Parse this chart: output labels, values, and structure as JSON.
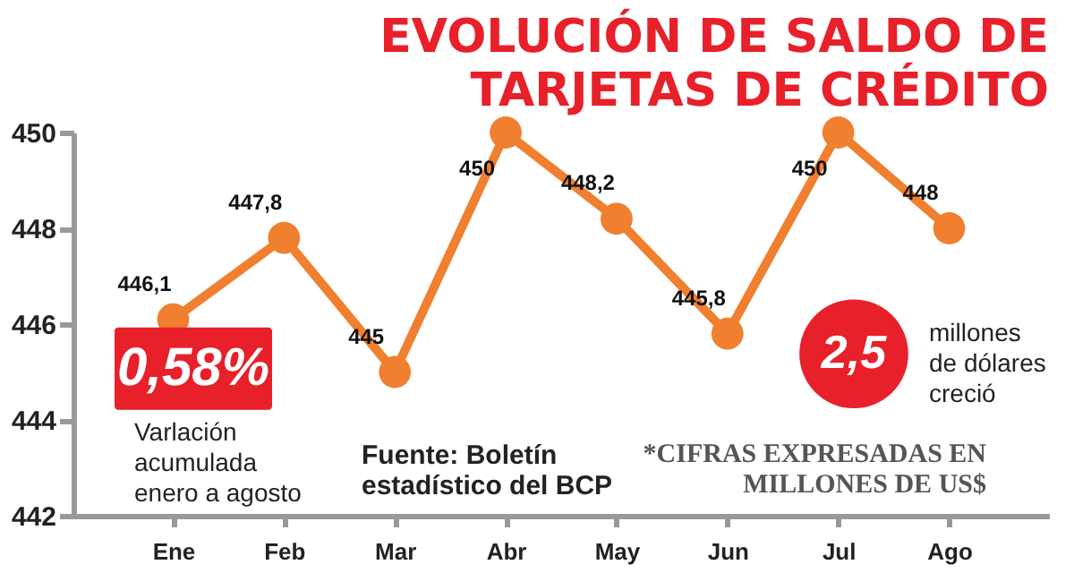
{
  "chart_data": {
    "type": "line",
    "title": "EVOLUCIÓN DE SALDO DE TARJETAS DE CRÉDITO",
    "categories": [
      "Ene",
      "Feb",
      "Mar",
      "Abr",
      "May",
      "Jun",
      "Jul",
      "Ago"
    ],
    "series": [
      {
        "color": "#f07f2f",
        "values": [
          446.1,
          447.8,
          445,
          450,
          448.2,
          445.8,
          450,
          448
        ],
        "value_labels": [
          "446,1",
          "447,8",
          "445",
          "450",
          "448,2",
          "445,8",
          "450",
          "448"
        ]
      }
    ],
    "ylim": [
      442,
      450
    ],
    "yticks": [
      442,
      444,
      446,
      448,
      450
    ],
    "grid": false,
    "marker": "circle",
    "line_style": "solid",
    "annotations": [
      "0,58%",
      "Varlación acumulada enero a agosto",
      "Fuente: Boletín estadístico del BCP",
      "2,5",
      "millones de dólares creció",
      "*CIFRAS EXPRESADAS EN MILLONES DE US$"
    ]
  }
}
